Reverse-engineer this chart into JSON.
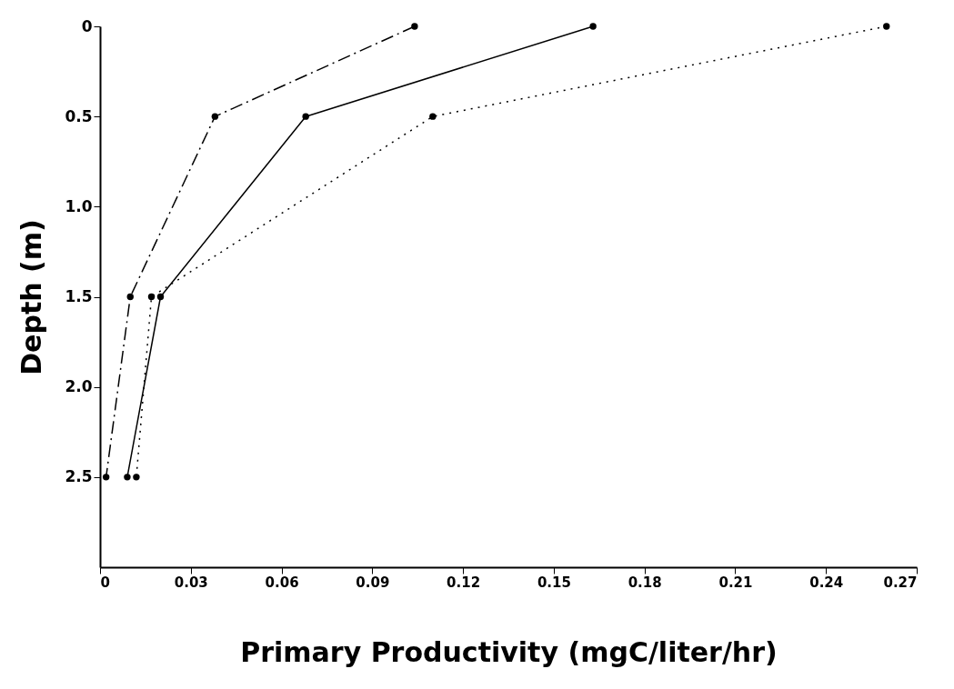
{
  "chart_data": {
    "type": "line",
    "xlabel": "Primary Productivity (mgC/liter/hr)",
    "ylabel": "Depth (m)",
    "series": [
      {
        "color": "#000000",
        "line_style": "dashdot",
        "x": [
          0.104,
          0.038,
          0.01,
          0.002
        ],
        "values": [
          0,
          0.5,
          1.5,
          2.5
        ]
      },
      {
        "color": "#000000",
        "line_style": "solid",
        "x": [
          0.163,
          0.068,
          0.02,
          0.009
        ],
        "values": [
          0,
          0.5,
          1.5,
          2.5
        ]
      },
      {
        "color": "#000000",
        "line_style": "dotted",
        "x": [
          0.26,
          0.11,
          0.017,
          0.012
        ],
        "values": [
          0,
          0.5,
          1.5,
          2.5
        ]
      }
    ],
    "xlim": [
      0,
      0.27
    ],
    "xticks": [
      0,
      0.03,
      0.06,
      0.09,
      0.12,
      0.15,
      0.18,
      0.21,
      0.24,
      0.27
    ],
    "ylim": [
      3.0,
      0
    ],
    "yticks": [
      0,
      0.5,
      {
        "value": 1,
        "label": "1.0"
      },
      1.5,
      {
        "value": 2,
        "label": "2.0"
      },
      2.5
    ],
    "marker": "circle",
    "grid": false
  }
}
